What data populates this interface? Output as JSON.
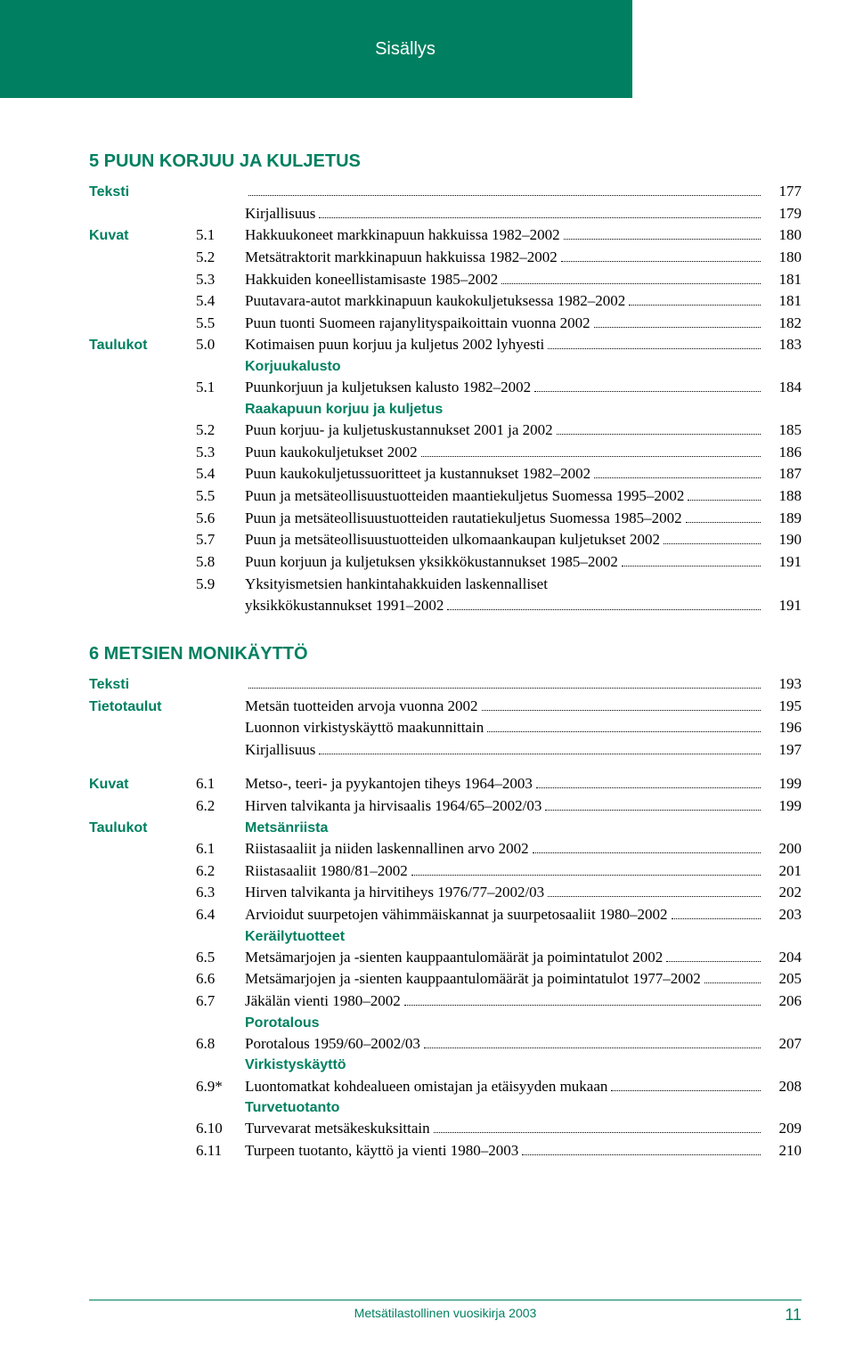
{
  "header": {
    "title": "Sisällys"
  },
  "sections": [
    {
      "title": "5 PUUN KORJUU JA KULJETUS",
      "groups": [
        {
          "label": "Teksti",
          "items": [
            {
              "num": "",
              "text": "",
              "page": "177",
              "leader": true
            },
            {
              "num": "",
              "text": "Kirjallisuus",
              "page": "179",
              "leader": true
            }
          ]
        },
        {
          "label": "Kuvat",
          "items": [
            {
              "num": "5.1",
              "text": "Hakkuukoneet markkinapuun hakkuissa 1982–2002",
              "page": "180",
              "leader": true
            },
            {
              "num": "5.2",
              "text": "Metsätraktorit markkinapuun hakkuissa 1982–2002",
              "page": "180",
              "leader": true
            },
            {
              "num": "5.3",
              "text": "Hakkuiden koneellistamisaste 1985–2002",
              "page": "181",
              "leader": true
            },
            {
              "num": "5.4",
              "text": "Puutavara-autot markkinapuun kaukokuljetuksessa 1982–2002",
              "page": "181",
              "leader": true
            },
            {
              "num": "5.5",
              "text": "Puun tuonti Suomeen rajanylityspaikoittain vuonna 2002",
              "page": "182",
              "leader": true
            }
          ]
        },
        {
          "label": "Taulukot",
          "items": [
            {
              "num": "5.0",
              "text": "Kotimaisen puun korjuu ja kuljetus 2002 lyhyesti",
              "page": "183",
              "leader": true
            },
            {
              "subheading": "Korjuukalusto"
            },
            {
              "num": "5.1",
              "text": "Puunkorjuun ja kuljetuksen kalusto 1982–2002",
              "page": "184",
              "leader": true
            },
            {
              "subheading": "Raakapuun korjuu ja kuljetus"
            },
            {
              "num": "5.2",
              "text": "Puun korjuu- ja kuljetuskustannukset 2001 ja 2002",
              "page": "185",
              "leader": true
            },
            {
              "num": "5.3",
              "text": "Puun kaukokuljetukset 2002",
              "page": "186",
              "leader": true
            },
            {
              "num": "5.4",
              "text": "Puun kaukokuljetussuoritteet ja kustannukset 1982–2002",
              "page": "187",
              "leader": true
            },
            {
              "num": "5.5",
              "text": "Puun ja metsäteollisuustuotteiden maantiekuljetus Suomessa 1995–2002",
              "page": "188",
              "leader": true
            },
            {
              "num": "5.6",
              "text": "Puun ja metsäteollisuustuotteiden rautatiekuljetus Suomessa 1985–2002",
              "page": "189",
              "leader": true
            },
            {
              "num": "5.7",
              "text": "Puun ja metsäteollisuustuotteiden ulkomaankaupan kuljetukset 2002",
              "page": "190",
              "leader": true
            },
            {
              "num": "5.8",
              "text": "Puun korjuun ja kuljetuksen yksikkökustannukset 1985–2002",
              "page": "191",
              "leader": true
            },
            {
              "num": "5.9",
              "text": "Yksityismetsien hankintahakkuiden laskennalliset",
              "page": "",
              "leader": false
            },
            {
              "num": "",
              "text": "yksikkökustannukset 1991–2002",
              "page": "191",
              "leader": true
            }
          ]
        }
      ]
    },
    {
      "title": "6 METSIEN MONIKÄYTTÖ",
      "groups": [
        {
          "label": "Teksti",
          "items": [
            {
              "num": "",
              "text": "",
              "page": "193",
              "leader": true
            }
          ]
        },
        {
          "label": "Tietotaulut",
          "items": [
            {
              "num": "",
              "text": "Metsän tuotteiden arvoja vuonna 2002",
              "page": "195",
              "leader": true
            },
            {
              "num": "",
              "text": "Luonnon virkistyskäyttö maakunnittain",
              "page": "196",
              "leader": true
            },
            {
              "num": "",
              "text": "Kirjallisuus",
              "page": "197",
              "leader": true
            }
          ]
        },
        {
          "label": "Kuvat",
          "spaced": true,
          "items": [
            {
              "num": "6.1",
              "text": "Metso-, teeri- ja pyykantojen tiheys 1964–2003",
              "page": "199",
              "leader": true
            },
            {
              "num": "6.2",
              "text": "Hirven talvikanta ja hirvisaalis 1964/65–2002/03",
              "page": "199",
              "leader": true
            }
          ]
        },
        {
          "label": "Taulukot",
          "items": [
            {
              "subheading": "Metsänriista"
            },
            {
              "num": "6.1",
              "text": "Riistasaaliit ja niiden laskennallinen arvo 2002",
              "page": "200",
              "leader": true
            },
            {
              "num": "6.2",
              "text": "Riistasaaliit 1980/81–2002",
              "page": "201",
              "leader": true
            },
            {
              "num": "6.3",
              "text": "Hirven talvikanta ja hirvitiheys 1976/77–2002/03",
              "page": "202",
              "leader": true
            },
            {
              "num": "6.4",
              "text": "Arvioidut suurpetojen vähimmäiskannat ja suurpetosaaliit 1980–2002",
              "page": "203",
              "leader": true
            },
            {
              "subheading": "Keräilytuotteet"
            },
            {
              "num": "6.5",
              "text": "Metsämarjojen ja -sienten kauppaantulomäärät ja poimintatulot 2002",
              "page": "204",
              "leader": true
            },
            {
              "num": "6.6",
              "text": "Metsämarjojen ja -sienten kauppaantulomäärät ja poimintatulot 1977–2002",
              "page": "205",
              "leader": true
            },
            {
              "num": "6.7",
              "text": "Jäkälän vienti 1980–2002",
              "page": "206",
              "leader": true
            },
            {
              "subheading": "Porotalous"
            },
            {
              "num": "6.8",
              "text": "Porotalous 1959/60–2002/03",
              "page": "207",
              "leader": true
            },
            {
              "subheading": "Virkistyskäyttö"
            },
            {
              "num": "6.9*",
              "text": "Luontomatkat kohdealueen omistajan ja etäisyyden mukaan",
              "page": "208",
              "leader": true
            },
            {
              "subheading": "Turvetuotanto"
            },
            {
              "num": "6.10",
              "text": "Turvevarat metsäkeskuksittain",
              "page": "209",
              "leader": true
            },
            {
              "num": "6.11",
              "text": "Turpeen tuotanto, käyttö ja vienti 1980–2003",
              "page": "210",
              "leader": true
            }
          ]
        }
      ]
    }
  ],
  "footer": {
    "text": "Metsätilastollinen vuosikirja 2003",
    "page": "11"
  },
  "colors": {
    "accent": "#008060",
    "text": "#000000",
    "background": "#ffffff"
  }
}
